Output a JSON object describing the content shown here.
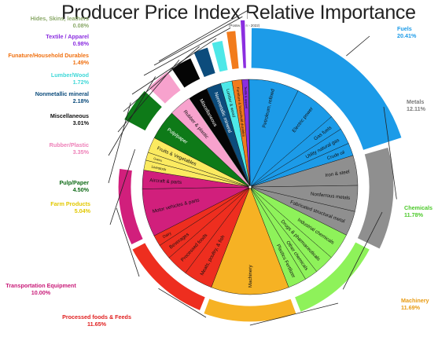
{
  "chart_data": {
    "type": "pie",
    "title": "Producer Price Index Relative Importance",
    "subtitle": "(Posted June 2022)",
    "groups": [
      {
        "name": "Fuels",
        "pct_label": "20.41%",
        "value": 20.41,
        "color": "#1c9be8",
        "label_color": "#1c9be8",
        "items": [
          {
            "name": "Petroleum, refined",
            "value": 7.5
          },
          {
            "name": "Electric power",
            "value": 6.3
          },
          {
            "name": "Gas fuels",
            "value": 2.3
          },
          {
            "name": "Utility natural gas",
            "value": 2.4
          },
          {
            "name": "Crude oil",
            "value": 1.91
          }
        ]
      },
      {
        "name": "Metals",
        "pct_label": "12.11%",
        "value": 12.11,
        "color": "#8f8f8f",
        "label_color": "#7a7a7a",
        "items": [
          {
            "name": "Iron & steel",
            "value": 4.5
          },
          {
            "name": "Nonferrous metals",
            "value": 3.9
          },
          {
            "name": "Fabricated structural metal",
            "value": 3.71
          }
        ]
      },
      {
        "name": "Chemicals",
        "pct_label": "11.78%",
        "value": 11.78,
        "color": "#8ef25a",
        "label_color": "#4cc92a",
        "items": [
          {
            "name": "Industrial chemicals",
            "value": 4.0
          },
          {
            "name": "Drugs & pharmaceuticals",
            "value": 3.0
          },
          {
            "name": "Other chemicals",
            "value": 2.0
          },
          {
            "name": "Plastics Fertilizer",
            "value": 2.78
          }
        ]
      },
      {
        "name": "Machinery",
        "pct_label": "11.69%",
        "value": 11.69,
        "color": "#f6b224",
        "label_color": "#e89a10",
        "items": [
          {
            "name": "Machinery",
            "value": 11.69
          }
        ]
      },
      {
        "name": "Processed foods & Feeds",
        "pct_label": "11.65%",
        "value": 11.65,
        "color": "#ee2e1f",
        "label_color": "#e02020",
        "items": [
          {
            "name": "Meats, poultry, & fish",
            "value": 4.4
          },
          {
            "name": "Processed foods",
            "value": 3.3
          },
          {
            "name": "Beverages",
            "value": 2.3
          },
          {
            "name": "Dairy",
            "value": 1.65
          }
        ]
      },
      {
        "name": "Transportation Equipment",
        "pct_label": "10.00%",
        "value": 10.0,
        "color": "#d11f7c",
        "label_color": "#c81a78",
        "items": [
          {
            "name": "Motor vehicles & parts",
            "value": 7.2
          },
          {
            "name": "Aircraft & parts",
            "value": 2.8
          }
        ]
      },
      {
        "name": "Farm Products",
        "pct_label": "5.04%",
        "value": 5.04,
        "color": "#fbea60",
        "label_color": "#e2c800",
        "items": [
          {
            "name": "Livestock",
            "value": 1.5
          },
          {
            "name": "Grains",
            "value": 1.2
          },
          {
            "name": "Fruits & Vegetables",
            "value": 2.34
          }
        ]
      },
      {
        "name": "Pulp/Paper",
        "pct_label": "4.50%",
        "value": 4.5,
        "color": "#0e7a18",
        "label_color": "#0e6a16",
        "items": [
          {
            "name": "Pulp/paper",
            "value": 4.5
          }
        ]
      },
      {
        "name": "Rubber/Plastic",
        "pct_label": "3.35%",
        "value": 3.35,
        "color": "#f7a2cd",
        "label_color": "#ee80b8",
        "items": [
          {
            "name": "Rubber & plastic",
            "value": 3.35
          }
        ]
      },
      {
        "name": "Miscellaneous",
        "pct_label": "3.01%",
        "value": 3.01,
        "color": "#050505",
        "label_color": "#111111",
        "items": [
          {
            "name": "Miscellaneous",
            "value": 3.01
          }
        ]
      },
      {
        "name": "Nonmetallic mineral",
        "pct_label": "2.18%",
        "value": 2.18,
        "color": "#0c4c7c",
        "label_color": "#0c4c7c",
        "items": [
          {
            "name": "Nonmetallic mineral",
            "value": 2.18
          }
        ]
      },
      {
        "name": "Lumber/Wood",
        "pct_label": "1.72%",
        "value": 1.72,
        "color": "#4de8e8",
        "label_color": "#40d8d8",
        "items": [
          {
            "name": "Lumber & wood",
            "value": 1.72
          }
        ]
      },
      {
        "name": "Funature/Household Durables",
        "pct_label": "1.49%",
        "value": 1.49,
        "color": "#f27b1c",
        "label_color": "#f07010",
        "items": [
          {
            "name": "Furniture & household durables",
            "value": 1.49
          }
        ]
      },
      {
        "name": "Textile / Apparel",
        "pct_label": "0.98%",
        "value": 0.98,
        "color": "#8b2ee0",
        "label_color": "#8b2ee0",
        "items": [
          {
            "name": "Textile & apparel",
            "value": 0.98
          }
        ]
      },
      {
        "name": "Hides, Skins, leathers",
        "pct_label": "0.08%",
        "value": 0.08,
        "color": "#a0bd7c",
        "label_color": "#8aa868",
        "items": [
          {
            "name": "Hides",
            "value": 0.08
          }
        ]
      }
    ]
  }
}
